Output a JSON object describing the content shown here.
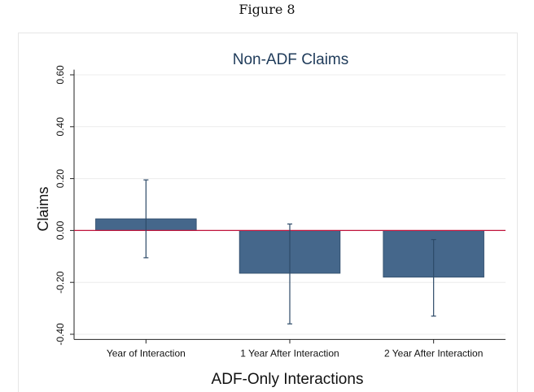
{
  "figure": {
    "caption": "Figure 8"
  },
  "chart_data": {
    "type": "bar",
    "title": "Non-ADF Claims",
    "xlabel": "ADF-Only Interactions",
    "ylabel": "Claims",
    "categories": [
      "Year of Interaction",
      "1 Year After Interaction",
      "2 Year After Interaction"
    ],
    "values": [
      0.045,
      -0.165,
      -0.18
    ],
    "error_bars": [
      {
        "low": -0.105,
        "high": 0.195
      },
      {
        "low": -0.36,
        "high": 0.025
      },
      {
        "low": -0.33,
        "high": -0.035
      }
    ],
    "yticks": [
      -0.4,
      -0.2,
      0.0,
      0.2,
      0.4,
      0.6
    ],
    "ytick_labels": [
      "-0.40",
      "-0.20",
      "0.00",
      "0.20",
      "0.40",
      "0.60"
    ],
    "ylim": [
      -0.42,
      0.62
    ],
    "grid": true,
    "reference_line": {
      "y": 0,
      "color": "#c0143c"
    },
    "colors": {
      "bar": "#45678b",
      "bar_edge": "#2d4a68",
      "error": "#2d4a68",
      "title": "#1f3b5a",
      "grid": "#ececec"
    }
  }
}
